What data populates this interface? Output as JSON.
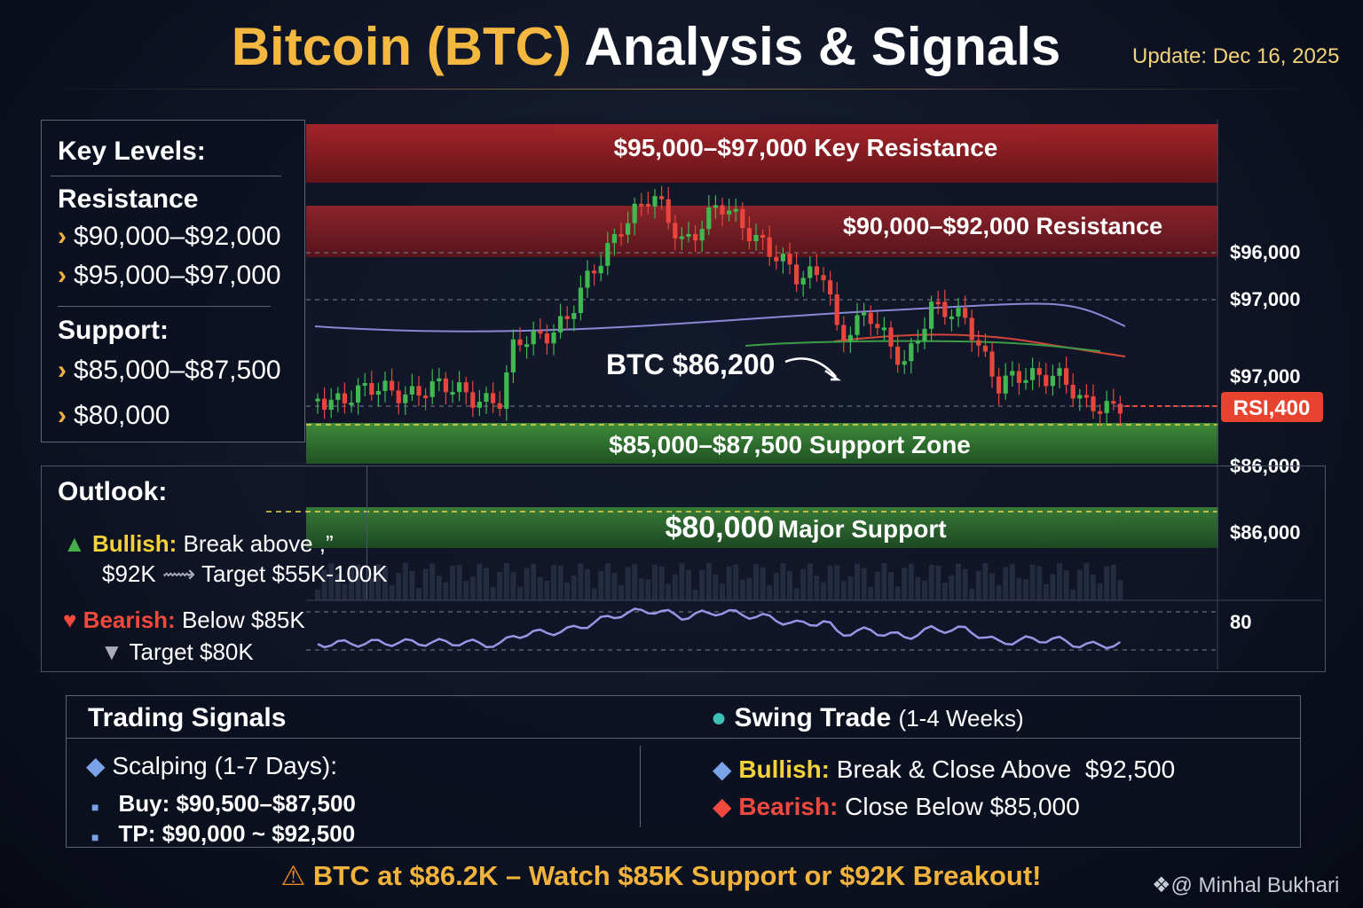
{
  "header": {
    "title_part1": "Bitcoin (BTC)",
    "title_part2": "Analysis & Signals",
    "update": "Update: Dec 16, 2025"
  },
  "key_levels": {
    "heading": "Key Levels:",
    "resistance_heading": "Resistance",
    "resistance": [
      "$90,000–$92,000",
      "$95,000–$97,000"
    ],
    "support_heading": "Support:",
    "support": [
      "$85,000–$87,500",
      "$80,000"
    ]
  },
  "outlook": {
    "heading": "Outlook:",
    "bullish_label": "Bullish:",
    "bullish_text": "Break above ,”",
    "bullish_level": "$92K",
    "bullish_target": "Target $55K-100K",
    "bearish_label": "Bearish:",
    "bearish_text": "Below $85K",
    "bearish_target": "Target $80K"
  },
  "chart": {
    "key_resistance": "$95,000–$97,000 Key Resistance",
    "resistance": "$90,000–$92,000 Resistance",
    "support_zone": "$85,000–$87,500 Support Zone",
    "major_support_level": "$80,000",
    "major_support_text": "Major Support",
    "price_callout": "BTC $86,200",
    "price_tag": "RSI,400",
    "axis_labels": [
      "$96,000",
      "$97,000",
      "$97,000",
      "$86,000",
      "$86,000",
      "80"
    ]
  },
  "signals": {
    "heading": "Trading Signals",
    "scalping_heading": "Scalping (1-7 Days):",
    "scalping_items": [
      "Buy: $90,500–$87,500",
      "TP: $90,000 ~ $92,500"
    ],
    "swing_heading": "Swing Trade",
    "swing_period": "(1-4 Weeks)",
    "swing_bullish_label": "Bullish:",
    "swing_bullish_text": "Break & Close Above  $92,500",
    "swing_bearish_label": "Bearish:",
    "swing_bearish_text": "Close Below $85,000"
  },
  "footer": {
    "alert": "BTC at $86.2K – Watch $85K Support or $92K Breakout!",
    "credit": "@ Minhal Bukhari"
  }
}
